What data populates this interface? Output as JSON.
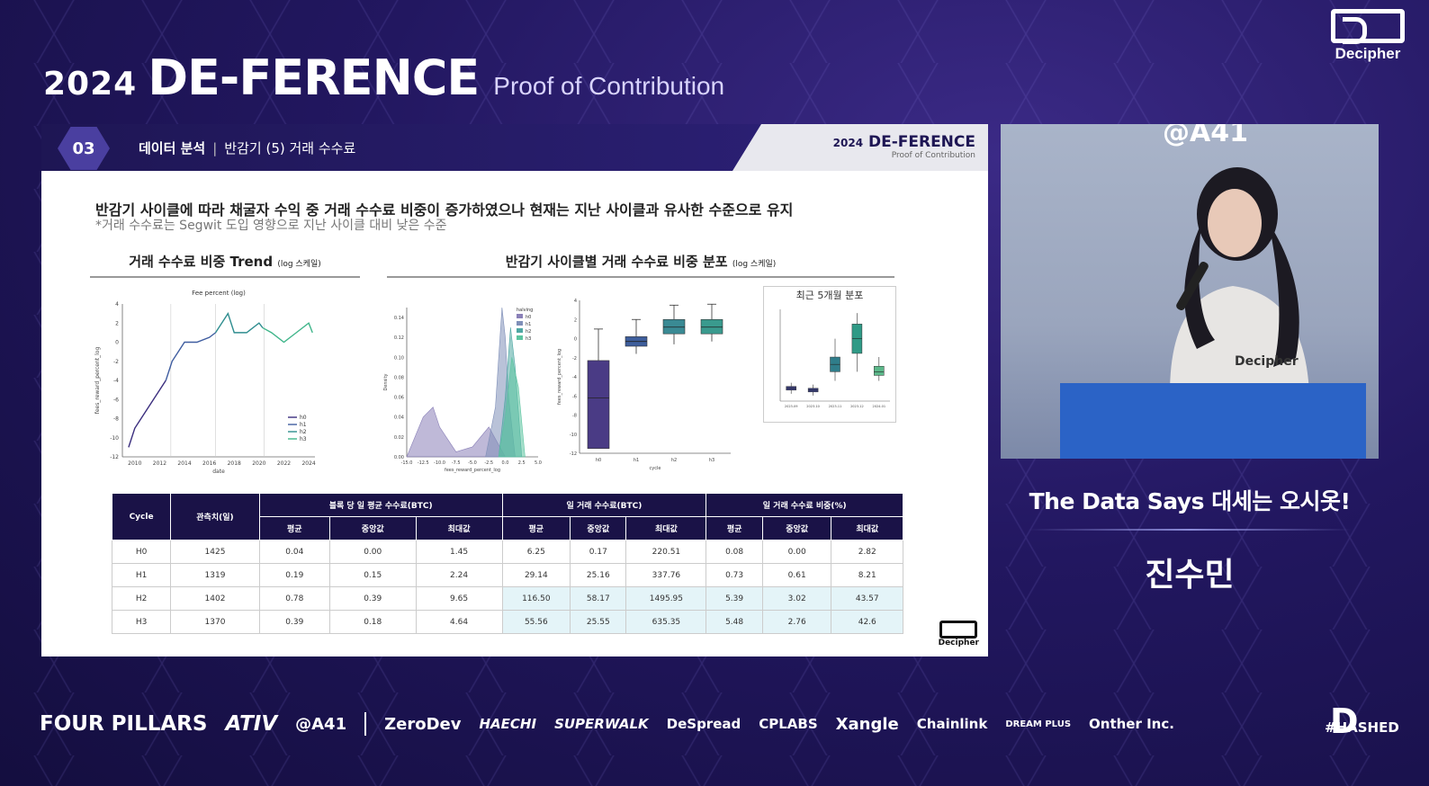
{
  "event": {
    "year": "2024",
    "name": "DE-FERENCE",
    "tagline": "Proof of Contribution"
  },
  "corner_logo": "Decipher",
  "slide": {
    "section_number": "03",
    "section_title": "데이터 분석",
    "section_sub": "반감기 (5) 거래 수수료",
    "header_logo_year": "2024",
    "header_logo_name": "DE-FERENCE",
    "header_logo_tagline": "Proof of Contribution",
    "headline": "반감기 사이클에 따라 채굴자 수익 중 거래 수수료 비중이 증가하였으나 현재는 지난 사이클과 유사한 수준으로 유지",
    "subline": "*거래 수수료는 Segwit 도입 영향으로 지난 사이클 대비 낮은 수준",
    "chart1_title": "거래 수수료 비중 Trend",
    "chart1_note": "(log 스케일)",
    "chart2_title": "반감기 사이클별 거래 수수료 비중 분포",
    "chart2_note": "(log 스케일)",
    "inset_title": "최근 5개월 분포",
    "footer_logo": "Decipher"
  },
  "chart_data": [
    {
      "type": "line",
      "title": "Fee percent (log)",
      "xlabel": "date",
      "ylabel": "fees_reward_percent_log",
      "x_ticks": [
        "2010",
        "2012",
        "2014",
        "2016",
        "2018",
        "2020",
        "2022",
        "2024"
      ],
      "y_ticks": [
        "4",
        "2",
        "0",
        "-2",
        "-4",
        "-6",
        "-8",
        "-10",
        "-12"
      ],
      "ylim": [
        -12,
        4
      ],
      "legend": [
        "h0",
        "h1",
        "h2",
        "h3"
      ],
      "legend_position": "bottom-right",
      "series": [
        {
          "name": "h0",
          "x": [
            2009.5,
            2010,
            2010.5,
            2011,
            2011.5,
            2012,
            2012.5
          ],
          "y": [
            -11,
            -9,
            -8,
            -7,
            -6,
            -5,
            -4
          ]
        },
        {
          "name": "h1",
          "x": [
            2012.5,
            2013,
            2013.5,
            2014,
            2015,
            2016,
            2016.5
          ],
          "y": [
            -4,
            -2,
            -1,
            0,
            0,
            0.5,
            1
          ]
        },
        {
          "name": "h2",
          "x": [
            2016.5,
            2017,
            2017.5,
            2018,
            2019,
            2020,
            2020.3
          ],
          "y": [
            1,
            2,
            3,
            1,
            1,
            2,
            1.5
          ]
        },
        {
          "name": "h3",
          "x": [
            2020.3,
            2021,
            2022,
            2023,
            2024,
            2024.3
          ],
          "y": [
            1.5,
            1,
            0,
            1,
            2,
            1
          ]
        }
      ],
      "colors": {
        "h0": "#3b2e7e",
        "h1": "#3f5da0",
        "h2": "#2e8d8f",
        "h3": "#3fb58a"
      }
    },
    {
      "type": "area",
      "xlabel": "fees_reward_percent_log",
      "ylabel": "Density",
      "x_ticks": [
        "-15.0",
        "-12.5",
        "-10.0",
        "-7.5",
        "-5.0",
        "-2.5",
        "0.0",
        "2.5",
        "5.0"
      ],
      "y_ticks": [
        "0.14",
        "0.12",
        "0.10",
        "0.08",
        "0.06",
        "0.04",
        "0.02",
        "0.00"
      ],
      "xlim": [
        -15,
        5
      ],
      "ylim": [
        0,
        0.15
      ],
      "legend": [
        "h0",
        "h1",
        "h2",
        "h3"
      ],
      "legend_title": "halving",
      "series": [
        {
          "name": "h0",
          "x": [
            -15,
            -12.5,
            -11,
            -10,
            -7.5,
            -5,
            -2.5,
            0
          ],
          "y": [
            0.0,
            0.04,
            0.05,
            0.03,
            0.005,
            0.01,
            0.03,
            0.0
          ]
        },
        {
          "name": "h1",
          "x": [
            -3,
            -1.5,
            -0.5,
            0,
            0.5,
            1.5
          ],
          "y": [
            0.0,
            0.05,
            0.15,
            0.12,
            0.06,
            0.0
          ]
        },
        {
          "name": "h2",
          "x": [
            -1,
            0,
            0.8,
            1.5,
            2.5
          ],
          "y": [
            0.0,
            0.06,
            0.13,
            0.09,
            0.0
          ]
        },
        {
          "name": "h3",
          "x": [
            -1,
            0,
            1,
            2,
            3
          ],
          "y": [
            0.0,
            0.04,
            0.1,
            0.07,
            0.0
          ]
        }
      ]
    },
    {
      "type": "box",
      "xlabel": "cycle",
      "ylabel": "fees_reward_percent_log",
      "categories": [
        "h0",
        "h1",
        "h2",
        "h3"
      ],
      "y_ticks": [
        "4",
        "2",
        "0",
        "-2",
        "-4",
        "-6",
        "-8",
        "-10",
        "-12"
      ],
      "ylim": [
        -12,
        4
      ],
      "boxes": [
        {
          "name": "h0",
          "min": -11.5,
          "q1": -11.5,
          "median": -6.2,
          "q3": -2.3,
          "max": 1.0
        },
        {
          "name": "h1",
          "min": -1.6,
          "q1": -0.8,
          "median": -0.3,
          "q3": 0.2,
          "max": 2.0
        },
        {
          "name": "h2",
          "min": -0.6,
          "q1": 0.5,
          "median": 1.2,
          "q3": 2.0,
          "max": 3.5
        },
        {
          "name": "h3",
          "min": -0.3,
          "q1": 0.5,
          "median": 1.2,
          "q3": 2.0,
          "max": 3.6
        }
      ]
    },
    {
      "type": "box",
      "title": "최근 5개월 분포",
      "categories": [
        "2023-09",
        "2023-10",
        "2023-11",
        "2023-12",
        "2024-01"
      ],
      "boxes": [
        {
          "name": "2023-09",
          "min": -0.2,
          "q1": 0.0,
          "median": 0.1,
          "q3": 0.2,
          "max": 0.4
        },
        {
          "name": "2023-10",
          "min": -0.3,
          "q1": -0.1,
          "median": 0.0,
          "q3": 0.1,
          "max": 0.3
        },
        {
          "name": "2023-11",
          "min": 0.5,
          "q1": 1.0,
          "median": 1.4,
          "q3": 1.8,
          "max": 2.8
        },
        {
          "name": "2023-12",
          "min": 1.0,
          "q1": 2.0,
          "median": 2.8,
          "q3": 3.6,
          "max": 4.2
        },
        {
          "name": "2024-01",
          "min": 0.5,
          "q1": 0.8,
          "median": 1.0,
          "q3": 1.3,
          "max": 1.8
        }
      ]
    },
    {
      "type": "table",
      "group_headers": [
        "Cycle",
        "관측치(일)",
        "블록 당 일 평균 수수료(BTC)",
        "일 거래 수수료(BTC)",
        "일 거래 수수료 비중(%)"
      ],
      "sub_headers": [
        "평균",
        "중앙값",
        "최대값",
        "평균",
        "중앙값",
        "최대값",
        "평균",
        "중앙값",
        "최대값"
      ],
      "rows": [
        [
          "H0",
          "1425",
          "0.04",
          "0.00",
          "1.45",
          "6.25",
          "0.17",
          "220.51",
          "0.08",
          "0.00",
          "2.82"
        ],
        [
          "H1",
          "1319",
          "0.19",
          "0.15",
          "2.24",
          "29.14",
          "25.16",
          "337.76",
          "0.73",
          "0.61",
          "8.21"
        ],
        [
          "H2",
          "1402",
          "0.78",
          "0.39",
          "9.65",
          "116.50",
          "58.17",
          "1495.95",
          "5.39",
          "3.02",
          "43.57"
        ],
        [
          "H3",
          "1370",
          "0.39",
          "0.18",
          "4.64",
          "55.56",
          "25.55",
          "635.35",
          "5.48",
          "2.76",
          "42.6"
        ]
      ]
    }
  ],
  "video": {
    "wall_text": "@A41",
    "badge": "Decipher"
  },
  "speaker": {
    "quote": "The Data Says 대세는 오시옷!",
    "name": "진수민"
  },
  "sponsors": [
    "FOUR PILLARS",
    "ATIV",
    "@A41",
    "ZeroDev",
    "HAECHI",
    "SUPERWALK",
    "DeSpread",
    "CPLABS",
    "Xangle",
    "Chainlink",
    "DREAM PLUS",
    "Onther Inc.",
    "#HASHED"
  ]
}
